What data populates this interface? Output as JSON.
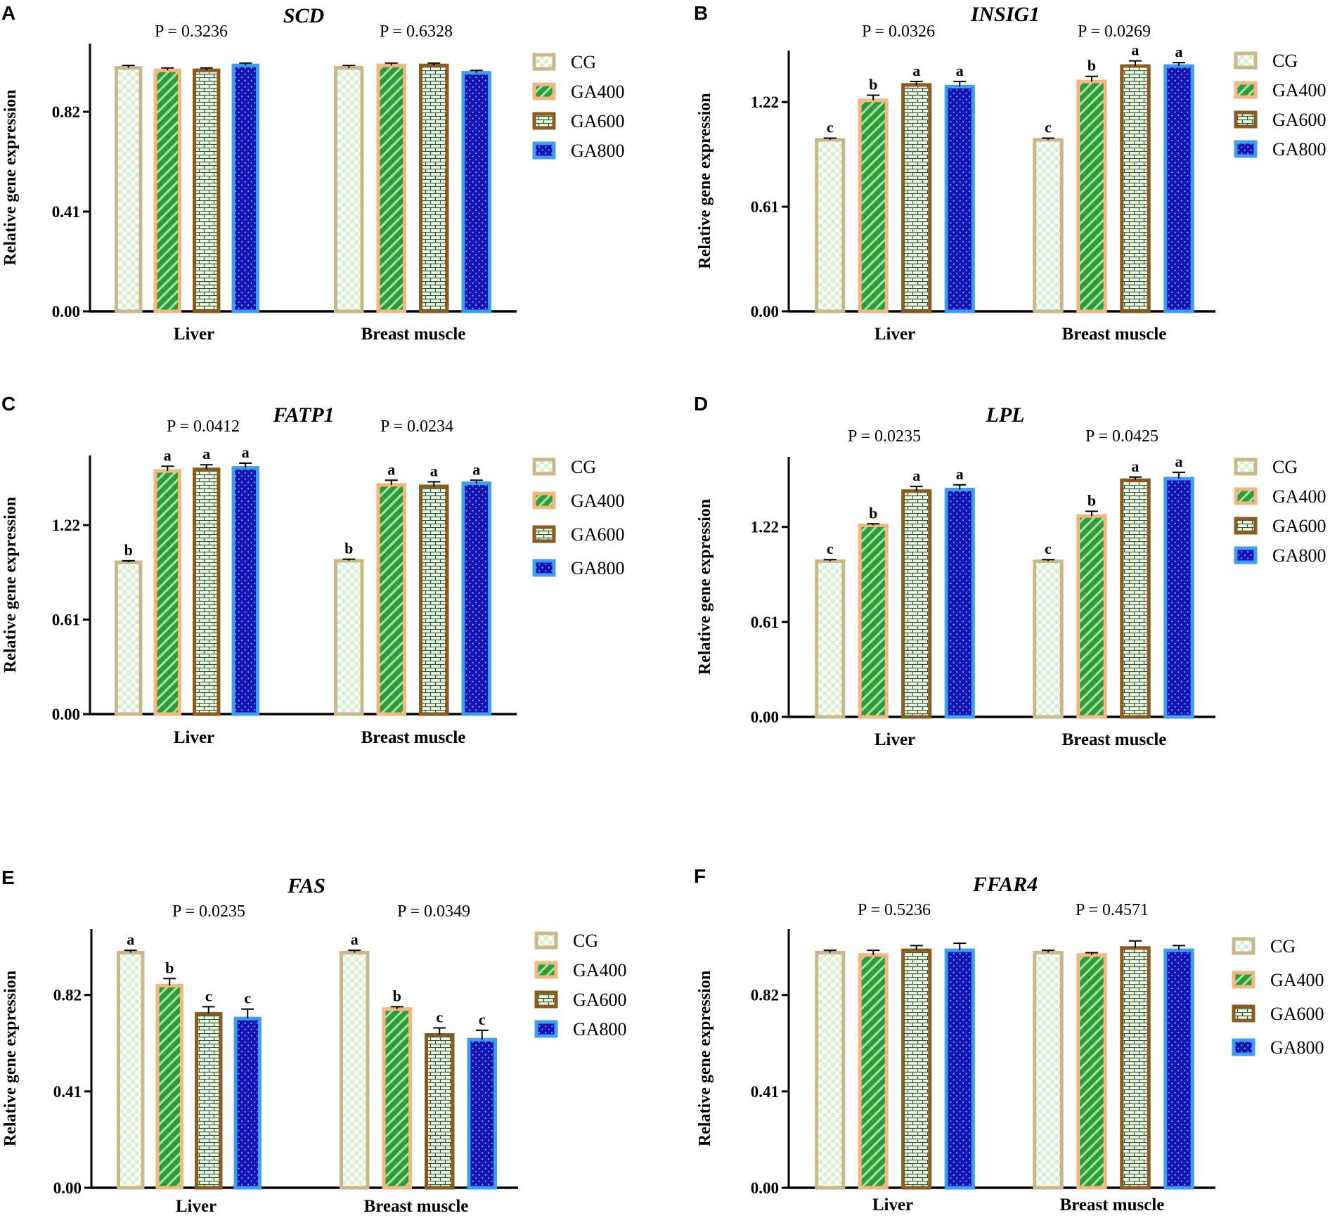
{
  "series_styles": {
    "CG": {
      "fill": "#d6f2d0",
      "dot": "#ffffff",
      "border": "#c8b88a",
      "pattern": "checker"
    },
    "GA400": {
      "fill": "#2d9b3a",
      "dot": "#a8e5a5",
      "border": "#f5b77f",
      "pattern": "diagonal"
    },
    "GA600": {
      "fill": "#eef6e8",
      "dot": "#2b5a2b",
      "border": "#8a5a1e",
      "pattern": "brick"
    },
    "GA800": {
      "fill": "#1414b4",
      "dot": "#8fa8ff",
      "border": "#3d9df0",
      "pattern": "dots"
    }
  },
  "chart_data": [
    {
      "panel": "A",
      "title": "SCD",
      "type": "bar",
      "categories": [
        "Liver",
        "Breast muscle"
      ],
      "series": [
        {
          "name": "CG",
          "values": [
            1.0,
            1.0
          ],
          "errors": [
            0.01,
            0.01
          ]
        },
        {
          "name": "GA400",
          "values": [
            0.99,
            1.01
          ],
          "errors": [
            0.01,
            0.01
          ]
        },
        {
          "name": "GA600",
          "values": [
            0.99,
            1.01
          ],
          "errors": [
            0.01,
            0.01
          ]
        },
        {
          "name": "GA800",
          "values": [
            1.01,
            0.98
          ],
          "errors": [
            0.01,
            0.01
          ]
        }
      ],
      "significance": [
        [
          "",
          "",
          "",
          ""
        ],
        [
          "",
          "",
          "",
          ""
        ]
      ],
      "pvalues": [
        "P = 0.3236",
        "P = 0.6328"
      ],
      "ylabel": "Relative gene expression",
      "yticks": [
        "0.00",
        "0.41",
        "0.82"
      ],
      "ytick_values": [
        0,
        0.41,
        0.82
      ],
      "ylim": [
        0,
        1.1
      ]
    },
    {
      "panel": "B",
      "title": "INSIG1",
      "type": "bar",
      "categories": [
        "Liver",
        "Breast muscle"
      ],
      "series": [
        {
          "name": "CG",
          "values": [
            1.0,
            1.0
          ],
          "errors": [
            0.01,
            0.01
          ]
        },
        {
          "name": "GA400",
          "values": [
            1.23,
            1.34
          ],
          "errors": [
            0.03,
            0.03
          ]
        },
        {
          "name": "GA600",
          "values": [
            1.32,
            1.43
          ],
          "errors": [
            0.02,
            0.03
          ]
        },
        {
          "name": "GA800",
          "values": [
            1.31,
            1.43
          ],
          "errors": [
            0.03,
            0.02
          ]
        }
      ],
      "significance": [
        [
          "c",
          "b",
          "a",
          "a"
        ],
        [
          "c",
          "b",
          "a",
          "a"
        ]
      ],
      "pvalues": [
        "P = 0.0326",
        "P = 0.0269"
      ],
      "ylabel": "Relative gene expression",
      "yticks": [
        "0.00",
        "0.61",
        "1.22"
      ],
      "ytick_values": [
        0,
        0.61,
        1.22
      ],
      "ylim": [
        0,
        1.52
      ]
    },
    {
      "panel": "C",
      "title": "FATP1",
      "type": "bar",
      "categories": [
        "Liver",
        "Breast muscle"
      ],
      "series": [
        {
          "name": "CG",
          "values": [
            0.98,
            0.99
          ],
          "errors": [
            0.01,
            0.01
          ]
        },
        {
          "name": "GA400",
          "values": [
            1.57,
            1.48
          ],
          "errors": [
            0.03,
            0.03
          ]
        },
        {
          "name": "GA600",
          "values": [
            1.58,
            1.47
          ],
          "errors": [
            0.03,
            0.03
          ]
        },
        {
          "name": "GA800",
          "values": [
            1.59,
            1.49
          ],
          "errors": [
            0.03,
            0.02
          ]
        }
      ],
      "significance": [
        [
          "b",
          "a",
          "a",
          "a"
        ],
        [
          "b",
          "a",
          "a",
          "a"
        ]
      ],
      "pvalues": [
        "P = 0.0412",
        "P = 0.0234"
      ],
      "ylabel": "Relative gene expression",
      "yticks": [
        "0.00",
        "0.61",
        "1.22"
      ],
      "ytick_values": [
        0,
        0.61,
        1.22
      ],
      "ylim": [
        0,
        1.67
      ]
    },
    {
      "panel": "D",
      "title": "LPL",
      "type": "bar",
      "categories": [
        "Liver",
        "Breast muscle"
      ],
      "series": [
        {
          "name": "CG",
          "values": [
            1.0,
            1.0
          ],
          "errors": [
            0.01,
            0.01
          ]
        },
        {
          "name": "GA400",
          "values": [
            1.23,
            1.29
          ],
          "errors": [
            0.01,
            0.03
          ]
        },
        {
          "name": "GA600",
          "values": [
            1.45,
            1.52
          ],
          "errors": [
            0.03,
            0.02
          ]
        },
        {
          "name": "GA800",
          "values": [
            1.46,
            1.53
          ],
          "errors": [
            0.03,
            0.04
          ]
        }
      ],
      "significance": [
        [
          "c",
          "b",
          "a",
          "a"
        ],
        [
          "c",
          "b",
          "a",
          "a"
        ]
      ],
      "pvalues": [
        "P = 0.0235",
        "P = 0.0425"
      ],
      "ylabel": "Relative gene expression",
      "yticks": [
        "0.00",
        "0.61",
        "1.22"
      ],
      "ytick_values": [
        0,
        0.61,
        1.22
      ],
      "ylim": [
        0,
        1.67
      ]
    },
    {
      "panel": "E",
      "title": "FAS",
      "type": "bar",
      "categories": [
        "Liver",
        "Breast muscle"
      ],
      "series": [
        {
          "name": "CG",
          "values": [
            1.0,
            1.0
          ],
          "errors": [
            0.01,
            0.01
          ]
        },
        {
          "name": "GA400",
          "values": [
            0.86,
            0.76
          ],
          "errors": [
            0.03,
            0.01
          ]
        },
        {
          "name": "GA600",
          "values": [
            0.74,
            0.65
          ],
          "errors": [
            0.03,
            0.03
          ]
        },
        {
          "name": "GA800",
          "values": [
            0.72,
            0.63
          ],
          "errors": [
            0.04,
            0.04
          ]
        }
      ],
      "significance": [
        [
          "a",
          "b",
          "c",
          "c"
        ],
        [
          "a",
          "b",
          "c",
          "c"
        ]
      ],
      "pvalues": [
        "P = 0.0235",
        "P = 0.0349"
      ],
      "ylabel": "Relative gene expression",
      "yticks": [
        "0.00",
        "0.41",
        "0.82"
      ],
      "ytick_values": [
        0,
        0.41,
        0.82
      ],
      "ylim": [
        0,
        1.1
      ]
    },
    {
      "panel": "F",
      "title": "FFAR4",
      "type": "bar",
      "categories": [
        "Liver",
        "Breast muscle"
      ],
      "series": [
        {
          "name": "CG",
          "values": [
            1.0,
            1.0
          ],
          "errors": [
            0.01,
            0.01
          ]
        },
        {
          "name": "GA400",
          "values": [
            0.99,
            0.99
          ],
          "errors": [
            0.02,
            0.01
          ]
        },
        {
          "name": "GA600",
          "values": [
            1.01,
            1.02
          ],
          "errors": [
            0.02,
            0.03
          ]
        },
        {
          "name": "GA800",
          "values": [
            1.01,
            1.01
          ],
          "errors": [
            0.03,
            0.02
          ]
        }
      ],
      "significance": [
        [
          "",
          "",
          "",
          ""
        ],
        [
          "",
          "",
          "",
          ""
        ]
      ],
      "pvalues": [
        "P = 0.5236",
        "P = 0.4571"
      ],
      "ylabel": "Relative gene expression",
      "yticks": [
        "0.00",
        "0.41",
        "0.82"
      ],
      "ytick_values": [
        0,
        0.41,
        0.82
      ],
      "ylim": [
        0,
        1.1
      ]
    }
  ]
}
